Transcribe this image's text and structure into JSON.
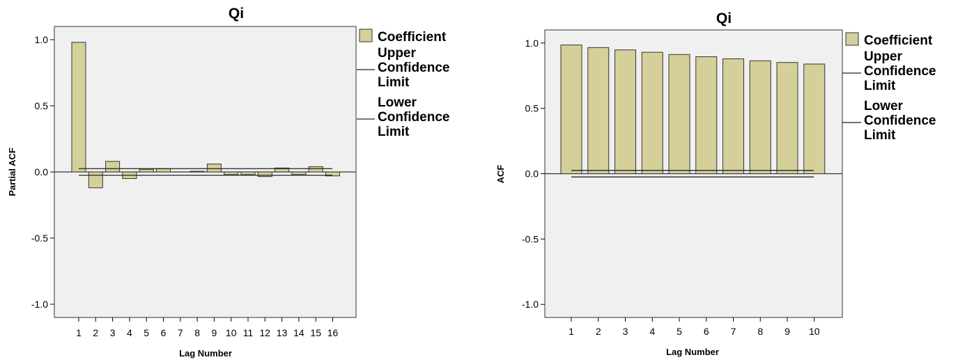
{
  "chart_data": [
    {
      "type": "bar",
      "title": "Qi",
      "xlabel": "Lag Number",
      "ylabel": "Partial ACF",
      "ylim": [
        -1.1,
        1.1
      ],
      "yticks": [
        {
          "v": 1.0,
          "label": "1.0"
        },
        {
          "v": 0.5,
          "label": "0.5"
        },
        {
          "v": 0.0,
          "label": "0.0"
        },
        {
          "v": -0.5,
          "label": "-0.5"
        },
        {
          "v": -1.0,
          "label": "-1.0"
        }
      ],
      "categories": [
        "1",
        "2",
        "3",
        "4",
        "5",
        "6",
        "7",
        "8",
        "9",
        "10",
        "11",
        "12",
        "13",
        "14",
        "15",
        "16"
      ],
      "series": [
        {
          "name": "Coefficient",
          "values": [
            0.98,
            -0.12,
            0.08,
            -0.05,
            0.02,
            0.025,
            0.0,
            0.005,
            0.06,
            -0.02,
            -0.02,
            -0.035,
            0.03,
            -0.02,
            0.04,
            -0.03
          ]
        }
      ],
      "upper_confidence_limit": 0.025,
      "lower_confidence_limit": -0.025,
      "legend": {
        "position": "right",
        "items": [
          {
            "kind": "swatch",
            "lines": [
              "Coefficient"
            ]
          },
          {
            "kind": "line",
            "lines": [
              "Upper",
              "Confidence",
              "Limit"
            ]
          },
          {
            "kind": "line",
            "lines": [
              "Lower",
              "Confidence",
              "Limit"
            ]
          }
        ]
      },
      "colors": {
        "bar": "#d5cf9a",
        "plot_bg": "#f0f0f0"
      }
    },
    {
      "type": "bar",
      "title": "Qi",
      "xlabel": "Lag Number",
      "ylabel": "ACF",
      "ylim": [
        -1.1,
        1.1
      ],
      "yticks": [
        {
          "v": 1.0,
          "label": "1.0"
        },
        {
          "v": 0.5,
          "label": "0.5"
        },
        {
          "v": 0.0,
          "label": "0.0"
        },
        {
          "v": -0.5,
          "label": "-0.5"
        },
        {
          "v": -1.0,
          "label": "-1.0"
        }
      ],
      "categories": [
        "1",
        "2",
        "3",
        "4",
        "5",
        "6",
        "7",
        "8",
        "9",
        "10"
      ],
      "series": [
        {
          "name": "Coefficient",
          "values": [
            0.985,
            0.965,
            0.947,
            0.929,
            0.912,
            0.895,
            0.879,
            0.864,
            0.851,
            0.839
          ]
        }
      ],
      "upper_confidence_limit": 0.025,
      "lower_confidence_limit": -0.025,
      "legend": {
        "position": "right",
        "items": [
          {
            "kind": "swatch",
            "lines": [
              "Coefficient"
            ]
          },
          {
            "kind": "line",
            "lines": [
              "Upper",
              "Confidence",
              "Limit"
            ]
          },
          {
            "kind": "line",
            "lines": [
              "Lower",
              "Confidence",
              "Limit"
            ]
          }
        ]
      },
      "colors": {
        "bar": "#d5cf9a",
        "plot_bg": "#f0f0f0"
      }
    }
  ]
}
